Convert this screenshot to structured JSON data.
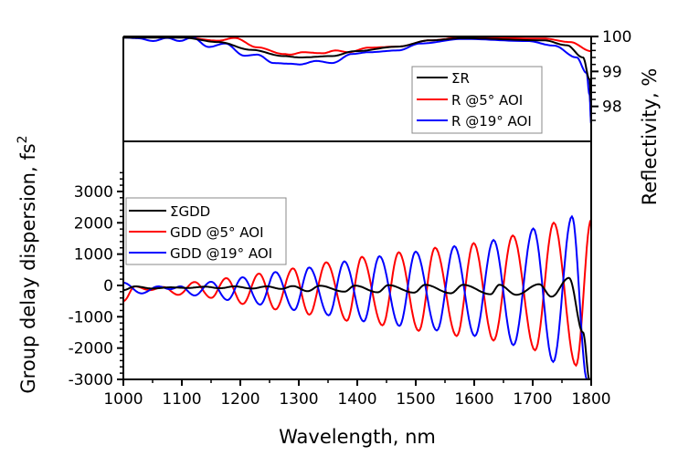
{
  "chart_data": [
    {
      "type": "line",
      "panel": "top",
      "ylabel": "Reflectivity, %",
      "y_axis_side": "right",
      "ylim": [
        97,
        100
      ],
      "xlim": [
        1000,
        1800
      ],
      "yticks": [
        98,
        99,
        100
      ],
      "y_minor_step": 0.2,
      "legend_position": "right",
      "series": [
        {
          "name": "ΣR",
          "color": "#000000",
          "points": [
            [
              1000,
              99.97
            ],
            [
              1100,
              99.97
            ],
            [
              1163,
              99.84
            ],
            [
              1218,
              99.62
            ],
            [
              1274,
              99.44
            ],
            [
              1302,
              99.4
            ],
            [
              1357,
              99.44
            ],
            [
              1396,
              99.58
            ],
            [
              1469,
              99.71
            ],
            [
              1524,
              99.89
            ],
            [
              1580,
              99.95
            ],
            [
              1719,
              99.89
            ],
            [
              1758,
              99.75
            ],
            [
              1786,
              99.4
            ],
            [
              1797,
              98.78
            ],
            [
              1800,
              98.1
            ]
          ]
        },
        {
          "name": "R @5° AOI",
          "color": "#ff0000",
          "points": [
            [
              1000,
              100
            ],
            [
              1100,
              99.98
            ],
            [
              1163,
              99.88
            ],
            [
              1190,
              99.96
            ],
            [
              1229,
              99.69
            ],
            [
              1274,
              99.5
            ],
            [
              1285,
              99.48
            ],
            [
              1307,
              99.55
            ],
            [
              1341,
              99.52
            ],
            [
              1363,
              99.6
            ],
            [
              1385,
              99.55
            ],
            [
              1419,
              99.68
            ],
            [
              1469,
              99.71
            ],
            [
              1524,
              99.89
            ],
            [
              1580,
              99.97
            ],
            [
              1719,
              99.94
            ],
            [
              1764,
              99.84
            ],
            [
              1800,
              99.58
            ]
          ]
        },
        {
          "name": "R @19° AOI",
          "color": "#0000ff",
          "points": [
            [
              1000,
              99.97
            ],
            [
              1025,
              99.95
            ],
            [
              1051,
              99.87
            ],
            [
              1075,
              99.96
            ],
            [
              1096,
              99.87
            ],
            [
              1118,
              99.97
            ],
            [
              1146,
              99.7
            ],
            [
              1174,
              99.8
            ],
            [
              1207,
              99.45
            ],
            [
              1229,
              99.48
            ],
            [
              1257,
              99.24
            ],
            [
              1285,
              99.22
            ],
            [
              1302,
              99.2
            ],
            [
              1330,
              99.3
            ],
            [
              1357,
              99.24
            ],
            [
              1391,
              99.5
            ],
            [
              1419,
              99.55
            ],
            [
              1469,
              99.6
            ],
            [
              1508,
              99.8
            ],
            [
              1580,
              99.93
            ],
            [
              1691,
              99.87
            ],
            [
              1736,
              99.74
            ],
            [
              1775,
              99.4
            ],
            [
              1792,
              98.96
            ],
            [
              1797,
              98.35
            ],
            [
              1800,
              97.5
            ]
          ]
        }
      ]
    },
    {
      "type": "line",
      "panel": "bottom",
      "xlabel": "Wavelength, nm",
      "ylabel": "Group delay dispersion, fs",
      "ylabel_superscript": "2",
      "xlim": [
        1000,
        1800
      ],
      "ylim": [
        -3000,
        4600
      ],
      "xticks": [
        1000,
        1100,
        1200,
        1300,
        1400,
        1500,
        1600,
        1700,
        1800
      ],
      "yticks": [
        -3000,
        -2000,
        -1000,
        0,
        1000,
        2000,
        3000
      ],
      "y_minor_step": 200,
      "legend_position": "top-left",
      "series": [
        {
          "name": "ΣGDD",
          "color": "#000000",
          "points": [
            [
              1000,
              -150
            ],
            [
              1020,
              -30
            ],
            [
              1050,
              -100
            ],
            [
              1080,
              -60
            ],
            [
              1110,
              -80
            ],
            [
              1140,
              -40
            ],
            [
              1165,
              -90
            ],
            [
              1190,
              -30
            ],
            [
              1220,
              -100
            ],
            [
              1245,
              -30
            ],
            [
              1270,
              -110
            ],
            [
              1290,
              -20
            ],
            [
              1315,
              -184
            ],
            [
              1336,
              -10
            ],
            [
              1378,
              -200
            ],
            [
              1396,
              -5
            ],
            [
              1435,
              -220
            ],
            [
              1453,
              10
            ],
            [
              1497,
              -230
            ],
            [
              1516,
              20
            ],
            [
              1560,
              -250
            ],
            [
              1581,
              20
            ],
            [
              1628,
              -280
            ],
            [
              1643,
              20
            ],
            [
              1672,
              -300
            ],
            [
              1711,
              40
            ],
            [
              1732,
              -360
            ],
            [
              1762,
              240
            ],
            [
              1786,
              -1500
            ],
            [
              1797,
              -3000
            ]
          ]
        },
        {
          "name": "GDD @5° AOI",
          "color": "#ff0000",
          "points": [
            [
              1000,
              -500
            ],
            [
              1020,
              -30
            ],
            [
              1045,
              -150
            ],
            [
              1068,
              -50
            ],
            [
              1094,
              -300
            ],
            [
              1122,
              110
            ],
            [
              1150,
              -398
            ],
            [
              1176,
              233
            ],
            [
              1204,
              -593
            ],
            [
              1232,
              379
            ],
            [
              1260,
              -768
            ],
            [
              1290,
              545
            ],
            [
              1318,
              -933
            ],
            [
              1347,
              738
            ],
            [
              1382,
              -1127
            ],
            [
              1408,
              913
            ],
            [
              1443,
              -1273
            ],
            [
              1471,
              1058
            ],
            [
              1505,
              -1448
            ],
            [
              1533,
              1204
            ],
            [
              1570,
              -1613
            ],
            [
              1599,
              1350
            ],
            [
              1633,
              -1759
            ],
            [
              1666,
              1594
            ],
            [
              1704,
              -2070
            ],
            [
              1736,
              2003
            ],
            [
              1774,
              -2556
            ],
            [
              1800,
              2100
            ]
          ]
        },
        {
          "name": "GDD @19° AOI",
          "color": "#0000ff",
          "points": [
            [
              1000,
              87
            ],
            [
              1031,
              -253
            ],
            [
              1060,
              -30
            ],
            [
              1080,
              -120
            ],
            [
              1098,
              -29
            ],
            [
              1122,
              -321
            ],
            [
              1150,
              117
            ],
            [
              1178,
              -466
            ],
            [
              1204,
              262
            ],
            [
              1234,
              -612
            ],
            [
              1260,
              428
            ],
            [
              1292,
              -787
            ],
            [
              1318,
              574
            ],
            [
              1351,
              -953
            ],
            [
              1378,
              767
            ],
            [
              1411,
              -1147
            ],
            [
              1438,
              933
            ],
            [
              1472,
              -1292
            ],
            [
              1500,
              1079
            ],
            [
              1536,
              -1438
            ],
            [
              1566,
              1254
            ],
            [
              1601,
              -1613
            ],
            [
              1633,
              1448
            ],
            [
              1667,
              -1905
            ],
            [
              1701,
              1817
            ],
            [
              1735,
              -2440
            ],
            [
              1767,
              2200
            ],
            [
              1793,
              -3000
            ]
          ]
        }
      ]
    }
  ]
}
